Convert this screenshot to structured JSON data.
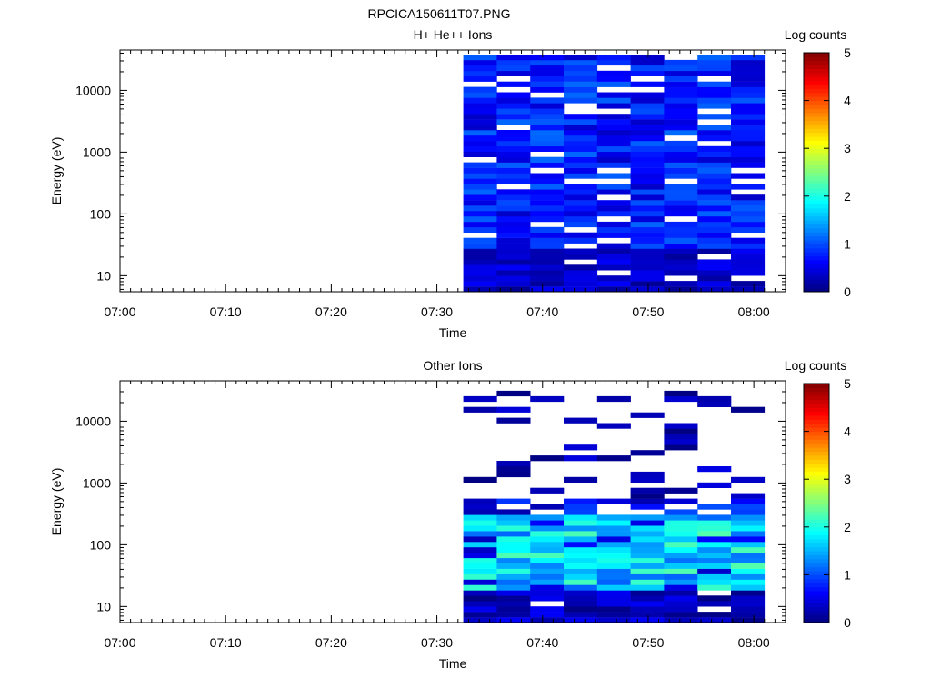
{
  "figure": {
    "title": "RPCICA150611T07.PNG"
  },
  "colors": {
    "background": "#ffffff",
    "axis": "#000000",
    "colormap": [
      "#00007f",
      "#0000ff",
      "#007fff",
      "#00ffff",
      "#7fff7f",
      "#ffff00",
      "#ff7f00",
      "#ff0000",
      "#7f0000"
    ]
  },
  "chart_data": [
    {
      "type": "heatmap",
      "title": "H+ He++ Ions",
      "xlabel": "Time",
      "ylabel": "Energy (eV)",
      "yscale": "log",
      "ylim": [
        5.5,
        45000
      ],
      "xlim": [
        "07:00",
        "08:03"
      ],
      "x_ticks": [
        "07:00",
        "07:10",
        "07:20",
        "07:30",
        "07:40",
        "07:50",
        "08:00"
      ],
      "y_ticks": [
        "10",
        "100",
        "1000",
        "10000"
      ],
      "colorbar": {
        "label": "Log counts",
        "range": [
          0,
          5
        ],
        "ticks": [
          "0",
          "1",
          "2",
          "3",
          "4",
          "5"
        ]
      },
      "time_bins": [
        "07:32:30",
        "07:35:40",
        "07:38:50",
        "07:42:00",
        "07:45:10",
        "07:48:20",
        "07:51:30",
        "07:54:40",
        "07:57:50",
        "08:01:00"
      ],
      "energy_range_eV": [
        5.5,
        38000
      ],
      "energy_channels": 44,
      "value_profile": {
        "low_energy_max_eV": 30,
        "low_energy_log_counts": [
          0.1,
          0.6
        ],
        "high_energy_log_counts": [
          0.35,
          1.15
        ],
        "blank_fraction": 0.12
      }
    },
    {
      "type": "heatmap",
      "title": "Other Ions",
      "xlabel": "Time",
      "ylabel": "Energy (eV)",
      "yscale": "log",
      "ylim": [
        5.5,
        45000
      ],
      "xlim": [
        "07:00",
        "08:03"
      ],
      "x_ticks": [
        "07:00",
        "07:10",
        "07:20",
        "07:30",
        "07:40",
        "07:50",
        "08:00"
      ],
      "y_ticks": [
        "10",
        "100",
        "1000",
        "10000"
      ],
      "colorbar": {
        "label": "Log counts",
        "range": [
          0,
          5
        ],
        "ticks": [
          "0",
          "1",
          "2",
          "3",
          "4",
          "5"
        ]
      },
      "time_bins": [
        "07:32:30",
        "07:35:40",
        "07:38:50",
        "07:42:00",
        "07:45:10",
        "07:48:20",
        "07:51:30",
        "07:54:40",
        "07:57:50",
        "08:01:00"
      ],
      "energy_range_eV": [
        5.5,
        38000
      ],
      "energy_channels": 44,
      "value_profile": {
        "bright_band_eV": [
          20,
          300
        ],
        "bright_band_log_counts": [
          1.1,
          2.3
        ],
        "low_energy_log_counts": [
          0.0,
          0.6
        ],
        "sparse_above_eV": 600,
        "sparse_log_counts": [
          0.0,
          0.5
        ],
        "sparse_fill_fraction": 0.18
      }
    }
  ]
}
